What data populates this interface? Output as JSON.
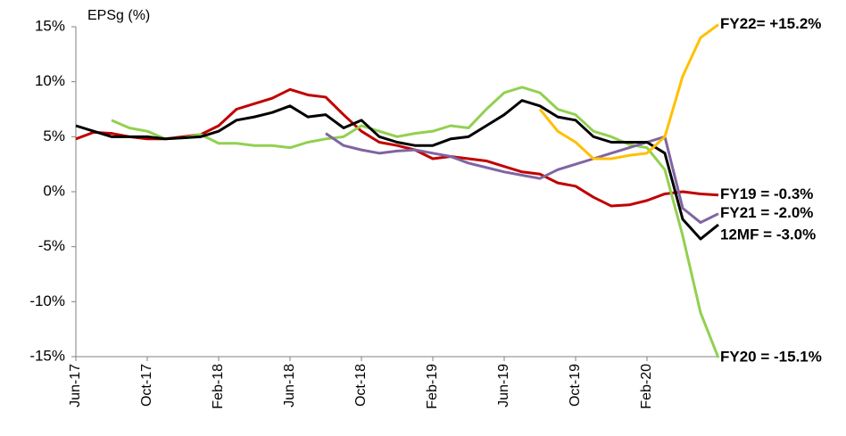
{
  "chart_data": {
    "type": "line",
    "y_axis_label": "EPSg (%)",
    "categories": [
      "Jun-17",
      null,
      null,
      null,
      "Oct-17",
      null,
      null,
      null,
      "Feb-18",
      null,
      null,
      null,
      "Jun-18",
      null,
      null,
      null,
      "Oct-18",
      null,
      null,
      null,
      "Feb-19",
      null,
      null,
      null,
      "Jun-19",
      null,
      null,
      null,
      "Oct-19",
      null,
      null,
      null,
      "Feb-20",
      null,
      null,
      null,
      null
    ],
    "ylim": [
      -15,
      15
    ],
    "yticks": [
      {
        "value": 15,
        "label": "15%"
      },
      {
        "value": 10,
        "label": "10%"
      },
      {
        "value": 5,
        "label": "5%"
      },
      {
        "value": 0,
        "label": "0%"
      },
      {
        "value": -5,
        "label": "-5%"
      },
      {
        "value": -10,
        "label": "-10%"
      },
      {
        "value": -15,
        "label": "-15%"
      }
    ],
    "series": [
      {
        "name": "FY19 = -0.3%",
        "color": "#c00000",
        "values": [
          4.8,
          5.4,
          5.3,
          5.0,
          4.8,
          4.8,
          5.0,
          5.2,
          6.0,
          7.5,
          8.0,
          8.5,
          9.3,
          8.8,
          8.6,
          7.0,
          5.5,
          4.5,
          4.2,
          3.8,
          3.0,
          3.2,
          3.0,
          2.8,
          2.3,
          1.8,
          1.6,
          0.8,
          0.5,
          -0.5,
          -1.3,
          -1.2,
          -0.8,
          -0.2,
          0.0,
          -0.2,
          -0.3
        ]
      },
      {
        "name": "FY20 = -15.1%",
        "color": "#92d050",
        "values": [
          null,
          null,
          6.5,
          5.8,
          5.5,
          4.8,
          4.9,
          5.2,
          4.4,
          4.4,
          4.2,
          4.2,
          4.0,
          4.5,
          4.8,
          5.0,
          6.0,
          5.5,
          5.0,
          5.3,
          5.5,
          6.0,
          5.8,
          7.5,
          9.0,
          9.5,
          9.0,
          7.5,
          7.0,
          5.5,
          5.0,
          4.3,
          4.0,
          2.0,
          -4.0,
          -11.0,
          -15.1
        ]
      },
      {
        "name": "FY21 = -2.0%",
        "color": "#8064a2",
        "values": [
          null,
          null,
          null,
          null,
          null,
          null,
          null,
          null,
          null,
          null,
          null,
          null,
          null,
          null,
          5.3,
          4.2,
          3.8,
          3.5,
          3.7,
          3.8,
          3.5,
          3.2,
          2.6,
          2.2,
          1.8,
          1.5,
          1.2,
          2.0,
          2.5,
          3.0,
          3.5,
          4.0,
          4.5,
          5.0,
          -1.5,
          -2.8,
          -2.0
        ]
      },
      {
        "name": "12MF = -3.0%",
        "color": "#000000",
        "values": [
          6.0,
          5.5,
          5.0,
          5.0,
          5.0,
          4.8,
          4.9,
          5.0,
          5.5,
          6.5,
          6.8,
          7.2,
          7.8,
          6.8,
          7.0,
          5.8,
          6.5,
          5.0,
          4.5,
          4.2,
          4.2,
          4.8,
          5.0,
          6.0,
          7.0,
          8.3,
          7.8,
          6.8,
          6.5,
          5.0,
          4.5,
          4.5,
          4.5,
          3.5,
          -2.5,
          -4.3,
          -3.0
        ]
      },
      {
        "name": "FY22= +15.2%",
        "color": "#ffc000",
        "values": [
          null,
          null,
          null,
          null,
          null,
          null,
          null,
          null,
          null,
          null,
          null,
          null,
          null,
          null,
          null,
          null,
          null,
          null,
          null,
          null,
          null,
          null,
          null,
          null,
          null,
          null,
          7.5,
          5.5,
          4.5,
          3.0,
          3.0,
          3.3,
          3.5,
          5.0,
          10.5,
          14.0,
          15.2
        ]
      }
    ]
  }
}
